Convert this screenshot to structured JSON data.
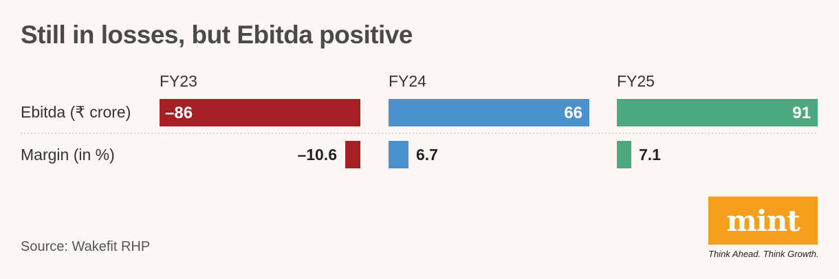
{
  "page": {
    "title": "Still in losses, but Ebitda positive",
    "source": "Source: Wakefit RHP",
    "logo_text": "mint",
    "tagline": "Think Ahead. Think Growth."
  },
  "colors": {
    "FY23": "#a51f24",
    "FY24": "#4b91cf",
    "FY25": "#4aa97f"
  },
  "chart_data": {
    "type": "bar",
    "categories": [
      "FY23",
      "FY24",
      "FY25"
    ],
    "series": [
      {
        "name": "Ebitda (₹ crore)",
        "values": [
          -86,
          66,
          91
        ],
        "labels": [
          "–86",
          "66",
          "91"
        ]
      },
      {
        "name": "Margin (in %)",
        "values": [
          -10.6,
          6.7,
          7.1
        ],
        "labels": [
          "–10.6",
          "6.7",
          "7.1"
        ]
      }
    ],
    "title": "Still in losses, but Ebitda positive",
    "xlabel": "",
    "ylabel": "",
    "grid": false
  }
}
